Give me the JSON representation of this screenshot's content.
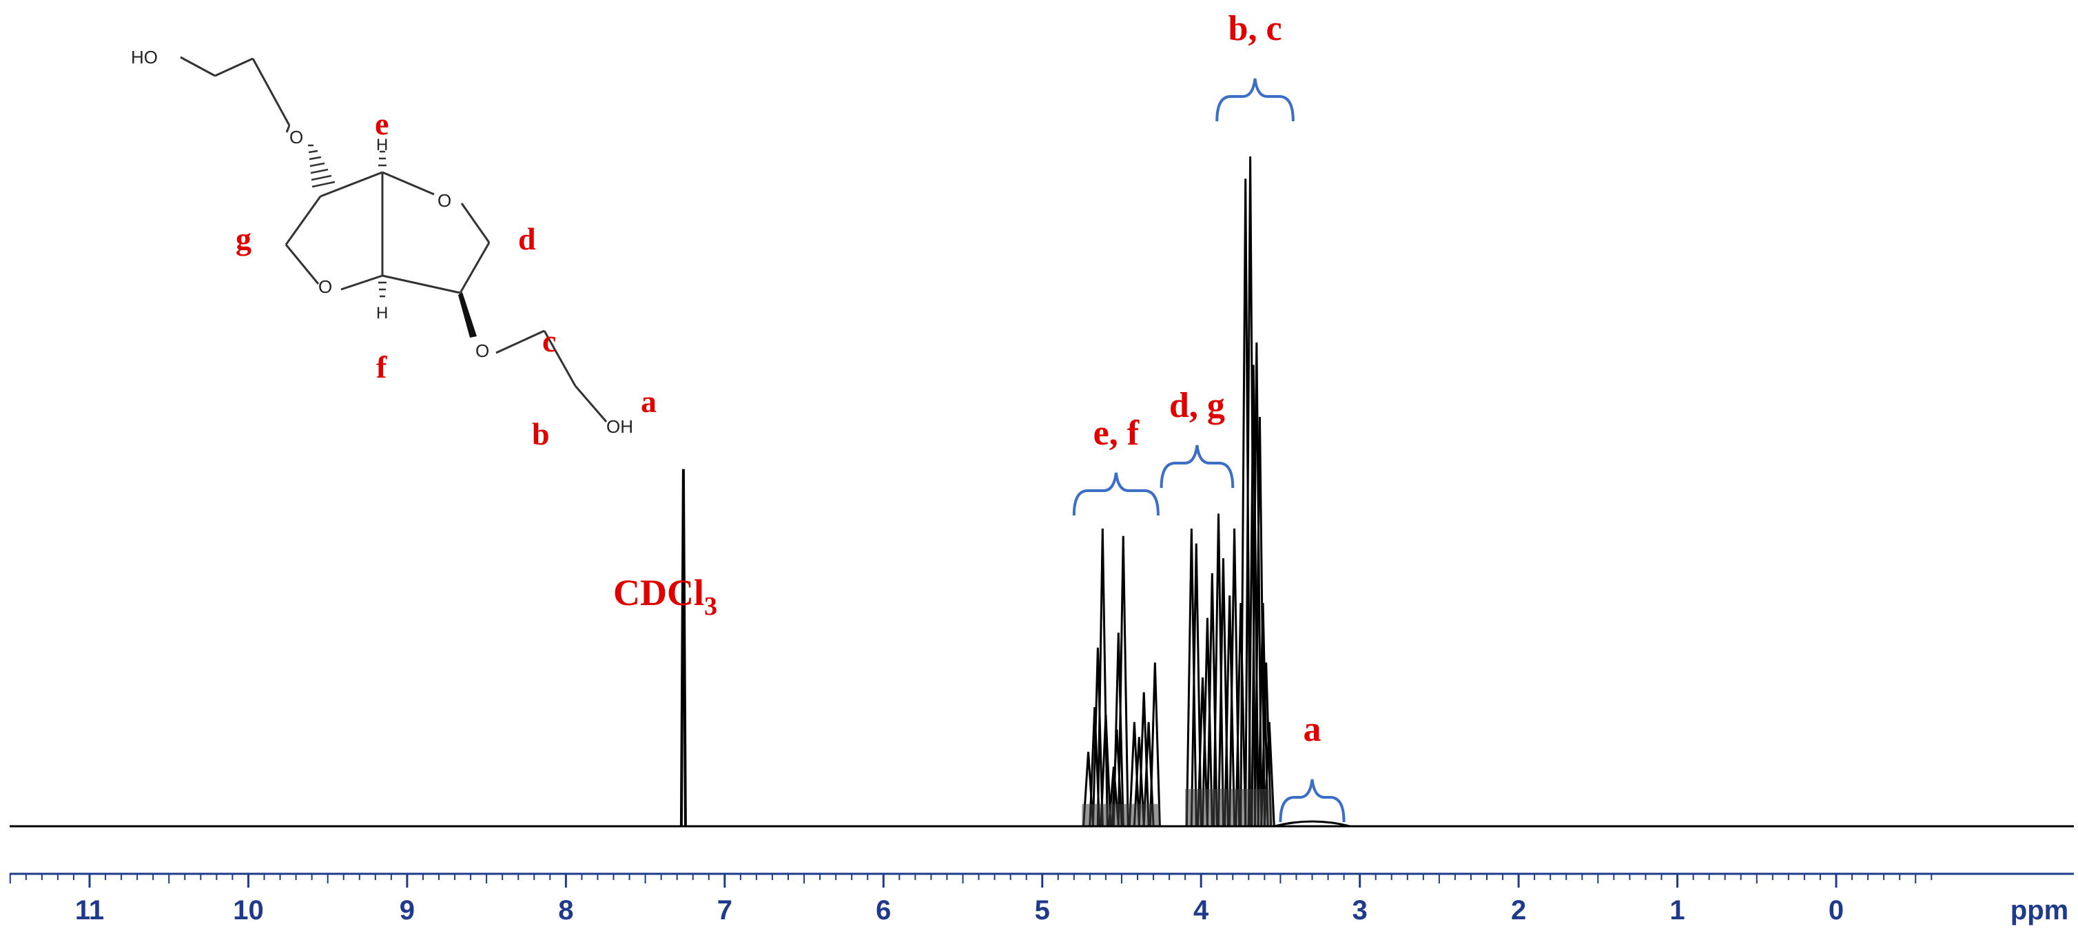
{
  "chart_data": {
    "type": "line",
    "title": "",
    "xlabel": "ppm",
    "ylabel": "",
    "x_axis": {
      "min": -0.6,
      "max": 11.6,
      "reversed": true,
      "ticks": [
        "11",
        "10",
        "9",
        "8",
        "7",
        "6",
        "5",
        "4",
        "3",
        "2",
        "1",
        "0"
      ],
      "unit_label": "ppm"
    },
    "grid": false,
    "peaks": [
      {
        "ppm": 7.26,
        "height": 0.48,
        "label": "CDCl3"
      },
      {
        "ppm": 4.71,
        "height": 0.1
      },
      {
        "ppm": 4.67,
        "height": 0.16
      },
      {
        "ppm": 4.65,
        "height": 0.24
      },
      {
        "ppm": 4.62,
        "height": 0.4
      },
      {
        "ppm": 4.6,
        "height": 0.15
      },
      {
        "ppm": 4.55,
        "height": 0.08
      },
      {
        "ppm": 4.53,
        "height": 0.13
      },
      {
        "ppm": 4.52,
        "height": 0.26
      },
      {
        "ppm": 4.49,
        "height": 0.39
      },
      {
        "ppm": 4.42,
        "height": 0.14
      },
      {
        "ppm": 4.39,
        "height": 0.12
      },
      {
        "ppm": 4.36,
        "height": 0.18
      },
      {
        "ppm": 4.33,
        "height": 0.14
      },
      {
        "ppm": 4.29,
        "height": 0.22
      },
      {
        "ppm": 4.06,
        "height": 0.4
      },
      {
        "ppm": 4.03,
        "height": 0.38
      },
      {
        "ppm": 3.99,
        "height": 0.2
      },
      {
        "ppm": 3.96,
        "height": 0.28
      },
      {
        "ppm": 3.93,
        "height": 0.34
      },
      {
        "ppm": 3.89,
        "height": 0.42
      },
      {
        "ppm": 3.86,
        "height": 0.36
      },
      {
        "ppm": 3.82,
        "height": 0.31
      },
      {
        "ppm": 3.79,
        "height": 0.4
      },
      {
        "ppm": 3.75,
        "height": 0.3
      },
      {
        "ppm": 3.72,
        "height": 0.87
      },
      {
        "ppm": 3.69,
        "height": 0.9
      },
      {
        "ppm": 3.67,
        "height": 0.62
      },
      {
        "ppm": 3.65,
        "height": 0.65
      },
      {
        "ppm": 3.63,
        "height": 0.55
      },
      {
        "ppm": 3.61,
        "height": 0.3
      },
      {
        "ppm": 3.59,
        "height": 0.22
      },
      {
        "ppm": 3.57,
        "height": 0.14
      },
      {
        "ppm": 3.3,
        "height": 0.006
      }
    ],
    "annotations": [
      {
        "text": "b, c",
        "bracket_from_ppm": 3.9,
        "bracket_to_ppm": 3.42
      },
      {
        "text": "d, g",
        "bracket_from_ppm": 4.25,
        "bracket_to_ppm": 3.8
      },
      {
        "text": "e, f",
        "bracket_from_ppm": 4.8,
        "bracket_to_ppm": 4.27
      },
      {
        "text": "a",
        "bracket_from_ppm": 3.5,
        "bracket_to_ppm": 3.1
      }
    ]
  },
  "solvent_label": {
    "main": "CDCl",
    "subscript": "3"
  },
  "structure": {
    "labels": {
      "e": "e",
      "f": "f",
      "g": "g",
      "d": "d",
      "c": "c",
      "b": "b",
      "a": "a"
    },
    "atoms": {
      "ho_top": "HO",
      "oh_bottom": "OH",
      "o": "O",
      "h": "H"
    }
  },
  "colors": {
    "annotation": "#e00000",
    "bracket": "#3b6ec6",
    "axis": "#1f3a8a",
    "spectrum": "#000000"
  }
}
